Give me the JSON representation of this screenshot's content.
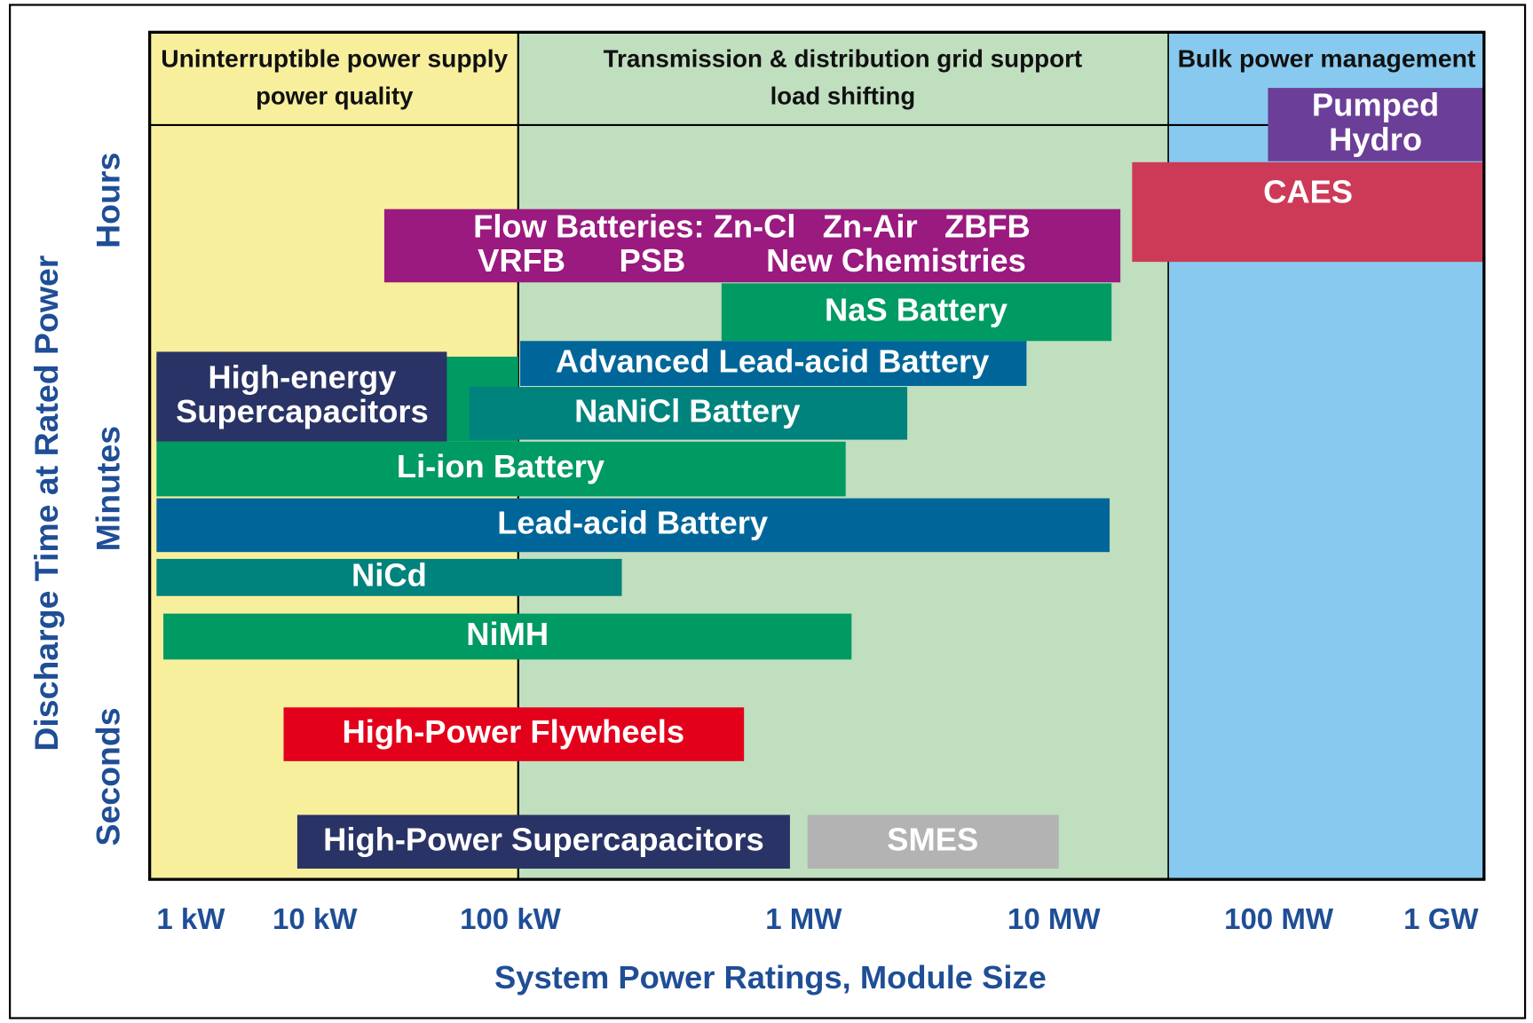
{
  "regions": [
    {
      "lines": [
        "Uninterruptible power supply",
        "power quality"
      ]
    },
    {
      "lines": [
        "Transmission & distribution grid support",
        "load shifting"
      ]
    },
    {
      "lines": [
        "Bulk power management"
      ]
    }
  ],
  "technologies": [
    {
      "lines": [
        "Pumped",
        "Hydro"
      ]
    },
    {
      "lines": [
        "CAES"
      ]
    },
    {
      "lines": [
        "Flow Batteries: Zn-Cl   Zn-Air   ZBFB",
        "VRFB      PSB         New Chemistries"
      ]
    },
    {
      "lines": [
        "NaS Battery"
      ]
    },
    {
      "lines": [
        "Advanced Lead-acid Battery"
      ]
    },
    {
      "lines": [
        "NaNiCl Battery"
      ]
    },
    {
      "lines": [
        "High-energy",
        "Supercapacitors"
      ]
    },
    {
      "lines": [
        "Li-ion Battery"
      ]
    },
    {
      "lines": [
        "Lead-acid Battery"
      ]
    },
    {
      "lines": [
        "NiCd"
      ]
    },
    {
      "lines": [
        "NiMH"
      ]
    },
    {
      "lines": [
        "High-Power Flywheels"
      ]
    },
    {
      "lines": [
        "High-Power Supercapacitors"
      ]
    },
    {
      "lines": [
        "SMES"
      ]
    }
  ],
  "y_axis": {
    "title": "Discharge Time at Rated Power",
    "labels": [
      "Hours",
      "Minutes",
      "Seconds"
    ]
  },
  "x_axis": {
    "title": "System Power Ratings, Module Size",
    "labels": [
      "1 kW",
      "10 kW",
      "100 kW",
      "1 MW",
      "10 MW",
      "100 MW",
      "1 GW"
    ]
  }
}
